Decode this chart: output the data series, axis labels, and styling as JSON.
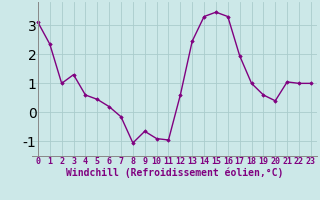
{
  "x": [
    0,
    1,
    2,
    3,
    4,
    5,
    6,
    7,
    8,
    9,
    10,
    11,
    12,
    13,
    14,
    15,
    16,
    17,
    18,
    19,
    20,
    21,
    22,
    23
  ],
  "y": [
    3.1,
    2.35,
    1.0,
    1.3,
    0.6,
    0.45,
    0.2,
    -0.15,
    -1.05,
    -0.65,
    -0.9,
    -0.95,
    0.6,
    2.45,
    3.3,
    3.45,
    3.3,
    1.95,
    1.0,
    0.6,
    0.4,
    1.05,
    1.0,
    1.0
  ],
  "line_color": "#800080",
  "marker": "D",
  "marker_size": 1.8,
  "bg_color": "#cce8e8",
  "grid_color": "#aacccc",
  "xlabel": "Windchill (Refroidissement éolien,°C)",
  "xlabel_color": "#800080",
  "tick_color": "#800080",
  "ylim": [
    -1.5,
    3.8
  ],
  "xlim": [
    -0.5,
    23.5
  ],
  "yticks": [
    -1,
    0,
    1,
    2,
    3
  ],
  "xticks": [
    0,
    1,
    2,
    3,
    4,
    5,
    6,
    7,
    8,
    9,
    10,
    11,
    12,
    13,
    14,
    15,
    16,
    17,
    18,
    19,
    20,
    21,
    22,
    23
  ],
  "linewidth": 1.0,
  "tick_fontsize": 6,
  "xlabel_fontsize": 7,
  "spine_color": "#888888"
}
